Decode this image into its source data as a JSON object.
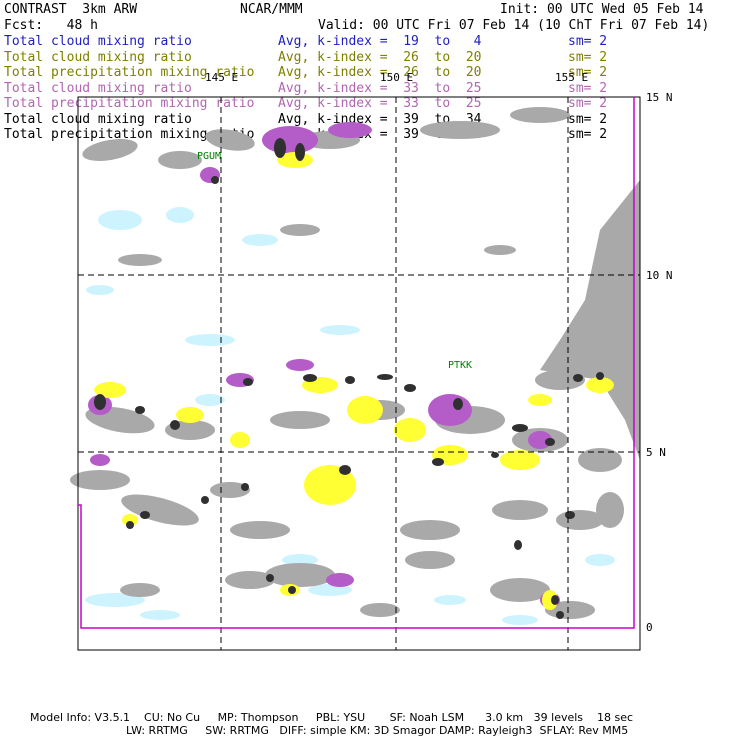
{
  "header": {
    "model": "CONTRAST  3km ARW",
    "org": "NCAR/MMM",
    "init": "Init: 00 UTC Wed 05 Feb 14",
    "fcst": "Fcst:   48 h",
    "valid": "Valid: 00 UTC Fri 07 Feb 14 (10 ChT Fri 07 Feb 14)"
  },
  "legend": [
    {
      "field": "Total cloud mixing ratio",
      "avg": "Avg, k-index =  19  to   4",
      "sm": "sm= 2",
      "color": "#1f1fbf"
    },
    {
      "field": "Total cloud mixing ratio",
      "avg": "Avg, k-index =  26  to  20",
      "sm": "sm= 2",
      "color": "#7f7f00"
    },
    {
      "field": "Total precipitation mixing ratio",
      "avg": "Avg, k-index =  26  to  20",
      "sm": "sm= 2",
      "color": "#7f7f00"
    },
    {
      "field": "Total cloud mixing ratio",
      "avg": "Avg, k-index =  33  to  25",
      "sm": "sm= 2",
      "color": "#b266b2"
    },
    {
      "field": "Total precipitation mixing ratio",
      "avg": "Avg, k-index =  33  to  25",
      "sm": "sm= 2",
      "color": "#b266b2"
    },
    {
      "field": "Total cloud mixing ratio",
      "avg": "Avg, k-index =  39  to  34",
      "sm": "sm= 2",
      "color": "#000000"
    },
    {
      "field": "Total precipitation mixing ratio",
      "avg": "Avg, k-index =  39  to  34",
      "sm": "sm= 2",
      "color": "#000000"
    }
  ],
  "map": {
    "lon_labels": [
      "145 E",
      "150 E",
      "155 E"
    ],
    "lat_labels": [
      "15 N",
      "10 N",
      "5 N",
      "0"
    ],
    "stations": [
      "PGUM",
      "PTKK"
    ],
    "colors": {
      "gray": "#a9a9a9",
      "yellow": "#ffff33",
      "purple": "#b45cc8",
      "cyan": "#cdf3ff",
      "dark": "#303030",
      "frame": "#000000",
      "magenta": "#cc00cc",
      "station": "#007f00"
    }
  },
  "footer": {
    "line1": "Model Info: V3.5.1    CU: No Cu     MP: Thompson     PBL: YSU       SF: Noah LSM      3.0 km   39 levels    18 sec",
    "line2": "LW: RRTMG     SW: RRTMG   DIFF: simple KM: 3D Smagor DAMP: Rayleigh3  SFLAY: Rev MM5"
  }
}
